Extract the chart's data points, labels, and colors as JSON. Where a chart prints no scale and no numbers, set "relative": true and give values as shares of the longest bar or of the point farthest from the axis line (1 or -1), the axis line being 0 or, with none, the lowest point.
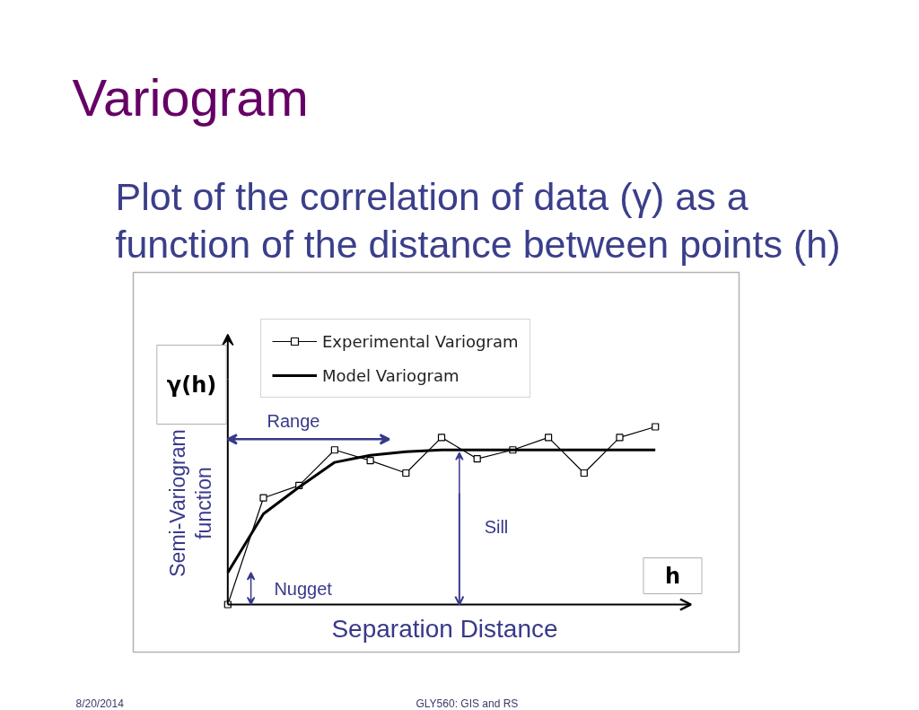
{
  "chart_data": {
    "type": "line",
    "title": "Variogram",
    "subtitle": "Plot of the correlation of data (γ) as a function of the distance between points (h)",
    "xlabel": "Separation Distance",
    "ylabel": "Semi-Variogram function",
    "relative": true,
    "categories": [
      null,
      null,
      null,
      null,
      null,
      null,
      null,
      null,
      null,
      null,
      null,
      null,
      null
    ],
    "series": [
      {
        "name": "Experimental Variogram",
        "color": "#000000",
        "marker": "square",
        "values": [
          0,
          0.6,
          0.67,
          0.87,
          0.81,
          0.74,
          0.94,
          0.82,
          0.87,
          0.94,
          0.74,
          0.94,
          1
        ]
      },
      {
        "name": "Model Variogram",
        "color": "#000000",
        "marker": "none",
        "values": [
          0.18,
          0.51,
          0.66,
          0.8,
          0.84,
          0.86,
          0.87,
          0.87,
          0.87,
          0.87,
          0.87,
          0.87,
          0.87
        ]
      }
    ],
    "legend": "top",
    "annotations": [
      "γ(h)",
      "h",
      "Range",
      "Sill",
      "Nugget",
      "8/20/2014",
      "GLY560: GIS and RS"
    ]
  }
}
